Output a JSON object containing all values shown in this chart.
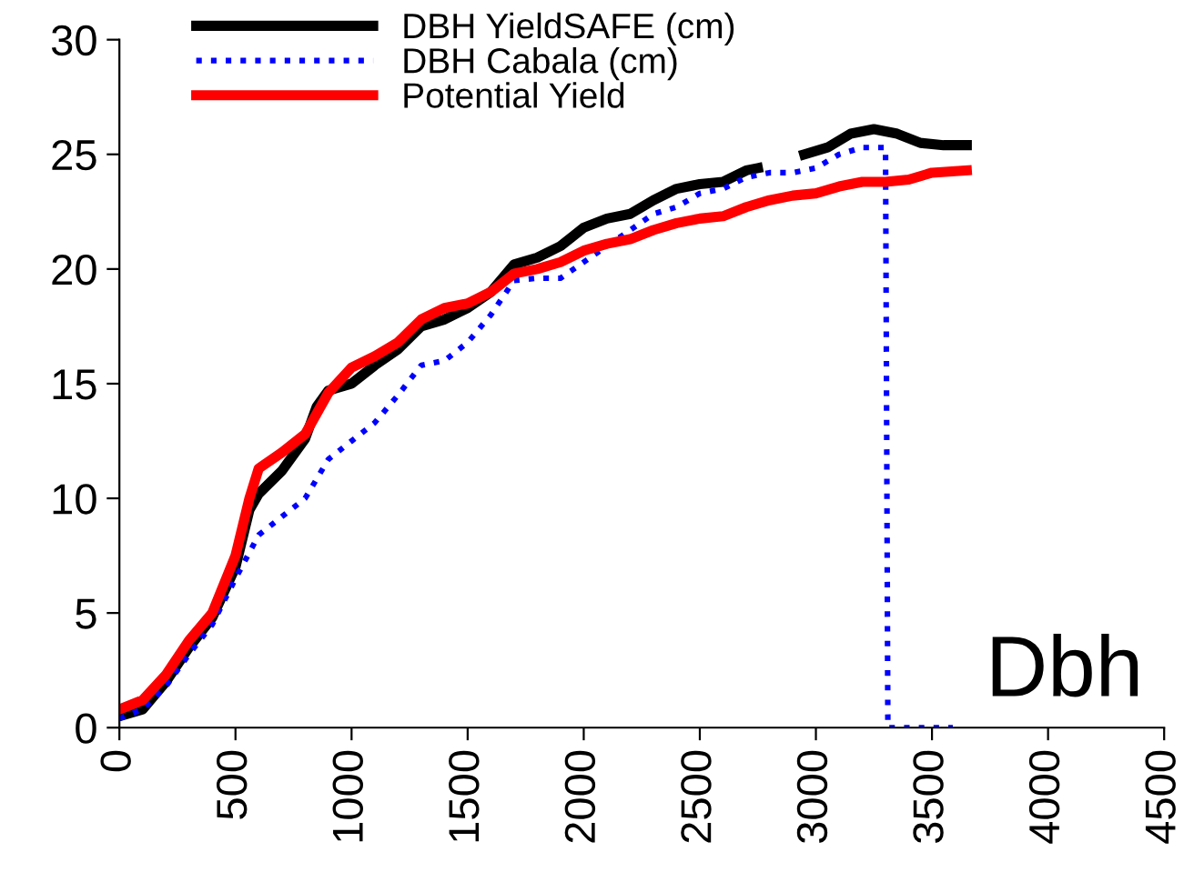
{
  "chart_data": {
    "type": "line",
    "annotations": [
      "Dbh"
    ],
    "xlim": [
      0,
      4500
    ],
    "xticks": [
      0,
      500,
      1000,
      1500,
      2000,
      2500,
      3000,
      3500,
      4000,
      4500
    ],
    "ylim": [
      0,
      30
    ],
    "yticks": [
      0,
      5,
      10,
      15,
      20,
      25,
      30
    ],
    "grid": false,
    "legend": "top left",
    "marker": "none",
    "series": [
      {
        "name": "DBH YieldSAFE (cm)",
        "color": "#000000",
        "line_style": "solid",
        "x": [
          0,
          100,
          200,
          300,
          400,
          500,
          560,
          600,
          700,
          800,
          850,
          900,
          1000,
          1100,
          1200,
          1300,
          1400,
          1500,
          1600,
          1700,
          1800,
          1900,
          2000,
          2100,
          2200,
          2300,
          2400,
          2500,
          2600,
          2700,
          2750,
          2850,
          2950,
          3050,
          3150,
          3250,
          3350,
          3450,
          3550,
          3650
        ],
        "values": [
          0.5,
          0.8,
          2.0,
          3.5,
          4.8,
          7.0,
          9.5,
          10.2,
          11.2,
          12.6,
          14.0,
          14.7,
          15.0,
          15.8,
          16.5,
          17.5,
          17.8,
          18.3,
          19.0,
          20.2,
          20.5,
          21.0,
          21.8,
          22.2,
          22.4,
          23.0,
          23.5,
          23.7,
          23.8,
          24.3,
          24.4,
          null,
          25.0,
          25.3,
          25.9,
          26.1,
          25.9,
          25.5,
          25.4,
          25.4
        ]
      },
      {
        "name": "DBH Cabala (cm)",
        "color": "#0000ff",
        "line_style": "dotted",
        "x": [
          0,
          100,
          200,
          300,
          400,
          500,
          600,
          700,
          800,
          900,
          1000,
          1100,
          1200,
          1300,
          1400,
          1500,
          1600,
          1700,
          1800,
          1900,
          2000,
          2100,
          2200,
          2300,
          2400,
          2500,
          2600,
          2700,
          2800,
          2900,
          3000,
          3100,
          3200,
          3300,
          3310,
          3590
        ],
        "values": [
          0.4,
          0.8,
          1.8,
          3.2,
          4.5,
          6.5,
          8.4,
          9.2,
          10.0,
          11.7,
          12.5,
          13.3,
          14.5,
          15.8,
          16.0,
          16.8,
          18.0,
          19.5,
          19.6,
          19.6,
          20.3,
          21.0,
          21.7,
          22.4,
          22.7,
          23.3,
          23.5,
          24.0,
          24.2,
          24.2,
          24.4,
          25.0,
          25.3,
          25.3,
          0,
          0
        ]
      },
      {
        "name": "Potential Yield",
        "color": "#ff0000",
        "line_style": "solid",
        "x": [
          0,
          100,
          200,
          300,
          400,
          500,
          560,
          600,
          700,
          800,
          900,
          1000,
          1100,
          1200,
          1300,
          1400,
          1500,
          1600,
          1700,
          1800,
          1900,
          2000,
          2100,
          2200,
          2300,
          2400,
          2500,
          2600,
          2700,
          2800,
          2900,
          3000,
          3100,
          3200,
          3300,
          3400,
          3500,
          3650
        ],
        "values": [
          0.8,
          1.2,
          2.3,
          3.8,
          5.0,
          7.5,
          10.0,
          11.3,
          12.0,
          12.8,
          14.6,
          15.7,
          16.2,
          16.8,
          17.8,
          18.3,
          18.5,
          19.0,
          19.8,
          20.0,
          20.3,
          20.8,
          21.1,
          21.3,
          21.7,
          22.0,
          22.2,
          22.3,
          22.7,
          23.0,
          23.2,
          23.3,
          23.6,
          23.8,
          23.8,
          23.9,
          24.2,
          24.3
        ]
      }
    ]
  }
}
